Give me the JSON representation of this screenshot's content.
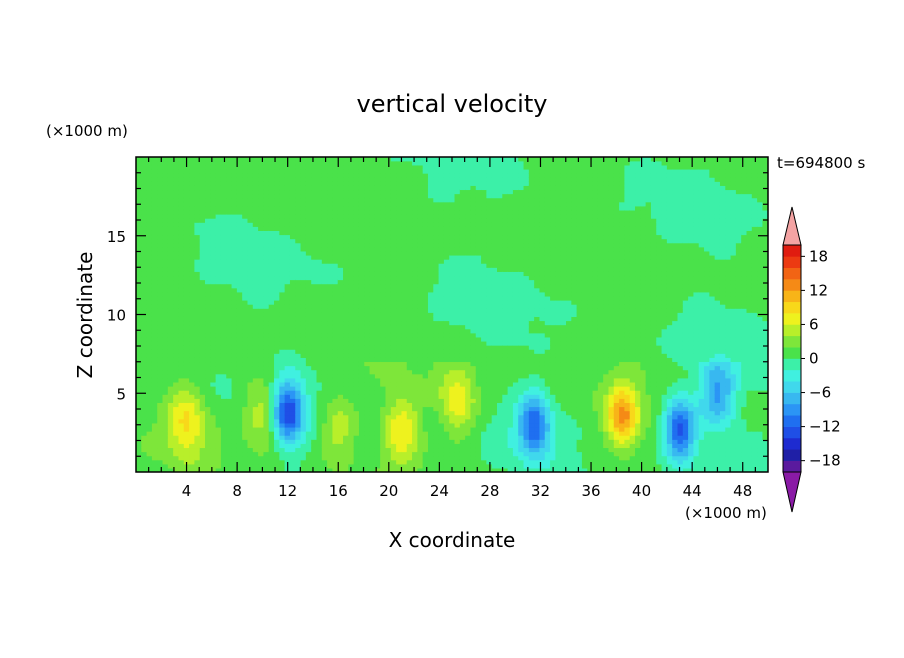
{
  "chart_data": {
    "type": "heatmap",
    "title": "vertical velocity",
    "xlabel": "X coordinate",
    "ylabel": "Z coordinate",
    "x_units": "(×1000 m)",
    "y_units": "(×1000 m)",
    "time_label": "t=694800 s",
    "xlim": [
      0,
      50
    ],
    "ylim": [
      0,
      20
    ],
    "x_ticks": [
      4,
      8,
      12,
      16,
      20,
      24,
      28,
      32,
      36,
      40,
      44,
      48
    ],
    "y_ticks": [
      5,
      10,
      15
    ],
    "colorbar": {
      "levels": [
        -20,
        -18,
        -16,
        -14,
        -12,
        -10,
        -8,
        -6,
        -4,
        -2,
        0,
        2,
        4,
        6,
        8,
        10,
        12,
        14,
        16,
        18,
        20
      ],
      "colors": [
        "#5a1a9e",
        "#1f1fa6",
        "#1e2bd0",
        "#1f4fe6",
        "#1f6ff0",
        "#2b95f5",
        "#38b8f0",
        "#40d8ec",
        "#40f0e0",
        "#3cf0a8",
        "#4ae24a",
        "#7ee63a",
        "#b8ef2a",
        "#eef21e",
        "#f8d81a",
        "#f8b418",
        "#f58a16",
        "#f26414",
        "#ec3a12",
        "#e01c10"
      ],
      "under_color": "#8a1aa6",
      "over_color": "#f4a3a3",
      "tick_labels": [
        "−18",
        "−12",
        "−6",
        "0",
        "6",
        "12",
        "18"
      ],
      "tick_values": [
        -18,
        -12,
        -6,
        0,
        6,
        12,
        18
      ]
    },
    "features": [
      {
        "x": 4,
        "z": 3.2,
        "peak": 7
      },
      {
        "x": 10,
        "z": 4.0,
        "peak": 6
      },
      {
        "x": 12,
        "z": 3.8,
        "peak": -14
      },
      {
        "x": 16,
        "z": 3.0,
        "peak": 5
      },
      {
        "x": 21,
        "z": 2.8,
        "peak": 7
      },
      {
        "x": 25.5,
        "z": 4.5,
        "peak": 7
      },
      {
        "x": 31.5,
        "z": 3.0,
        "peak": -12
      },
      {
        "x": 38.5,
        "z": 3.5,
        "peak": 11
      },
      {
        "x": 43,
        "z": 2.8,
        "peak": -14
      },
      {
        "x": 46,
        "z": 5.0,
        "peak": -9
      }
    ]
  }
}
